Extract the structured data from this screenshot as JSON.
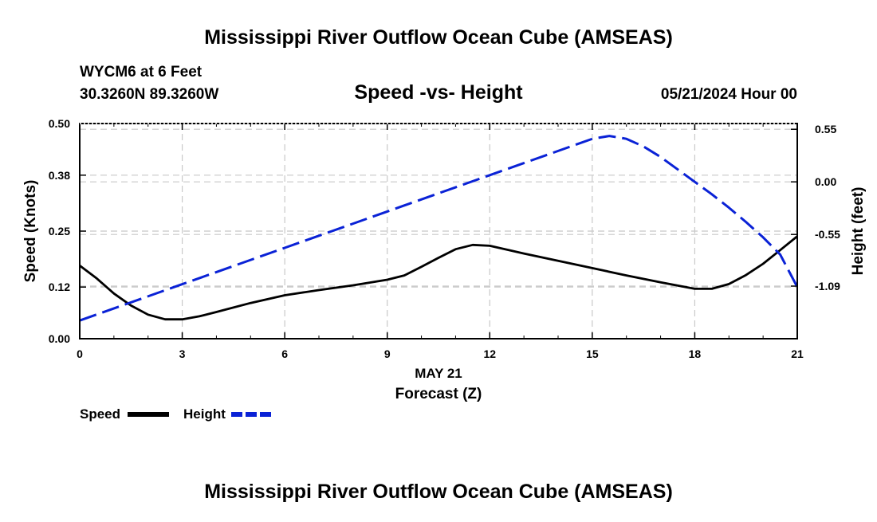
{
  "page": {
    "title": "Mississippi River Outflow Ocean Cube (AMSEAS)",
    "bottom_title": "Mississippi River Outflow Ocean Cube (AMSEAS)"
  },
  "header": {
    "station": "WYCM6 at 6 Feet",
    "coords": "30.3260N  89.3260W",
    "datetime": "05/21/2024 Hour 00"
  },
  "chart_data": {
    "type": "line",
    "title": "Speed -vs- Height",
    "xlabel": "Forecast (Z)",
    "xdate": "MAY 21",
    "ylabel": "Speed (Knots)",
    "y2label": "Height (feet)",
    "xlim": [
      0,
      21
    ],
    "ylim": [
      0,
      0.5
    ],
    "y2lim": [
      -1.64,
      0.61
    ],
    "xticks": [
      0,
      3,
      6,
      9,
      12,
      15,
      18,
      21
    ],
    "yticks": [
      "0.00",
      "0.12",
      "0.25",
      "0.38",
      "0.50"
    ],
    "y2ticks": [
      "0.55",
      "0.00",
      "-0.55",
      "-1.09"
    ],
    "grid": true,
    "legend_position": "bottom-left",
    "series": [
      {
        "name": "Speed",
        "axis": "left",
        "color": "#000000",
        "style": "solid",
        "x": [
          0,
          0.5,
          1,
          1.5,
          2,
          2.5,
          3,
          3.5,
          4,
          5,
          6,
          7,
          8,
          9,
          9.5,
          10,
          10.5,
          11,
          11.5,
          12,
          13,
          14,
          15,
          16,
          17,
          18,
          18.5,
          19,
          19.5,
          20,
          20.5,
          21
        ],
        "values": [
          0.17,
          0.14,
          0.105,
          0.077,
          0.056,
          0.045,
          0.045,
          0.052,
          0.062,
          0.083,
          0.101,
          0.113,
          0.124,
          0.137,
          0.147,
          0.167,
          0.188,
          0.208,
          0.218,
          0.216,
          0.198,
          0.181,
          0.164,
          0.147,
          0.131,
          0.116,
          0.116,
          0.127,
          0.148,
          0.174,
          0.206,
          0.238
        ]
      },
      {
        "name": "Height",
        "axis": "right",
        "color": "#0a22d6",
        "style": "dashed",
        "x": [
          0,
          3,
          6,
          9,
          12,
          15,
          15.5,
          16,
          16.5,
          17,
          17.5,
          18,
          18.5,
          19,
          19.5,
          20,
          20.5,
          21
        ],
        "values": [
          -1.45,
          -1.07,
          -0.69,
          -0.31,
          0.07,
          0.45,
          0.48,
          0.45,
          0.37,
          0.26,
          0.13,
          0.0,
          -0.13,
          -0.27,
          -0.42,
          -0.58,
          -0.76,
          -1.1
        ]
      }
    ]
  }
}
